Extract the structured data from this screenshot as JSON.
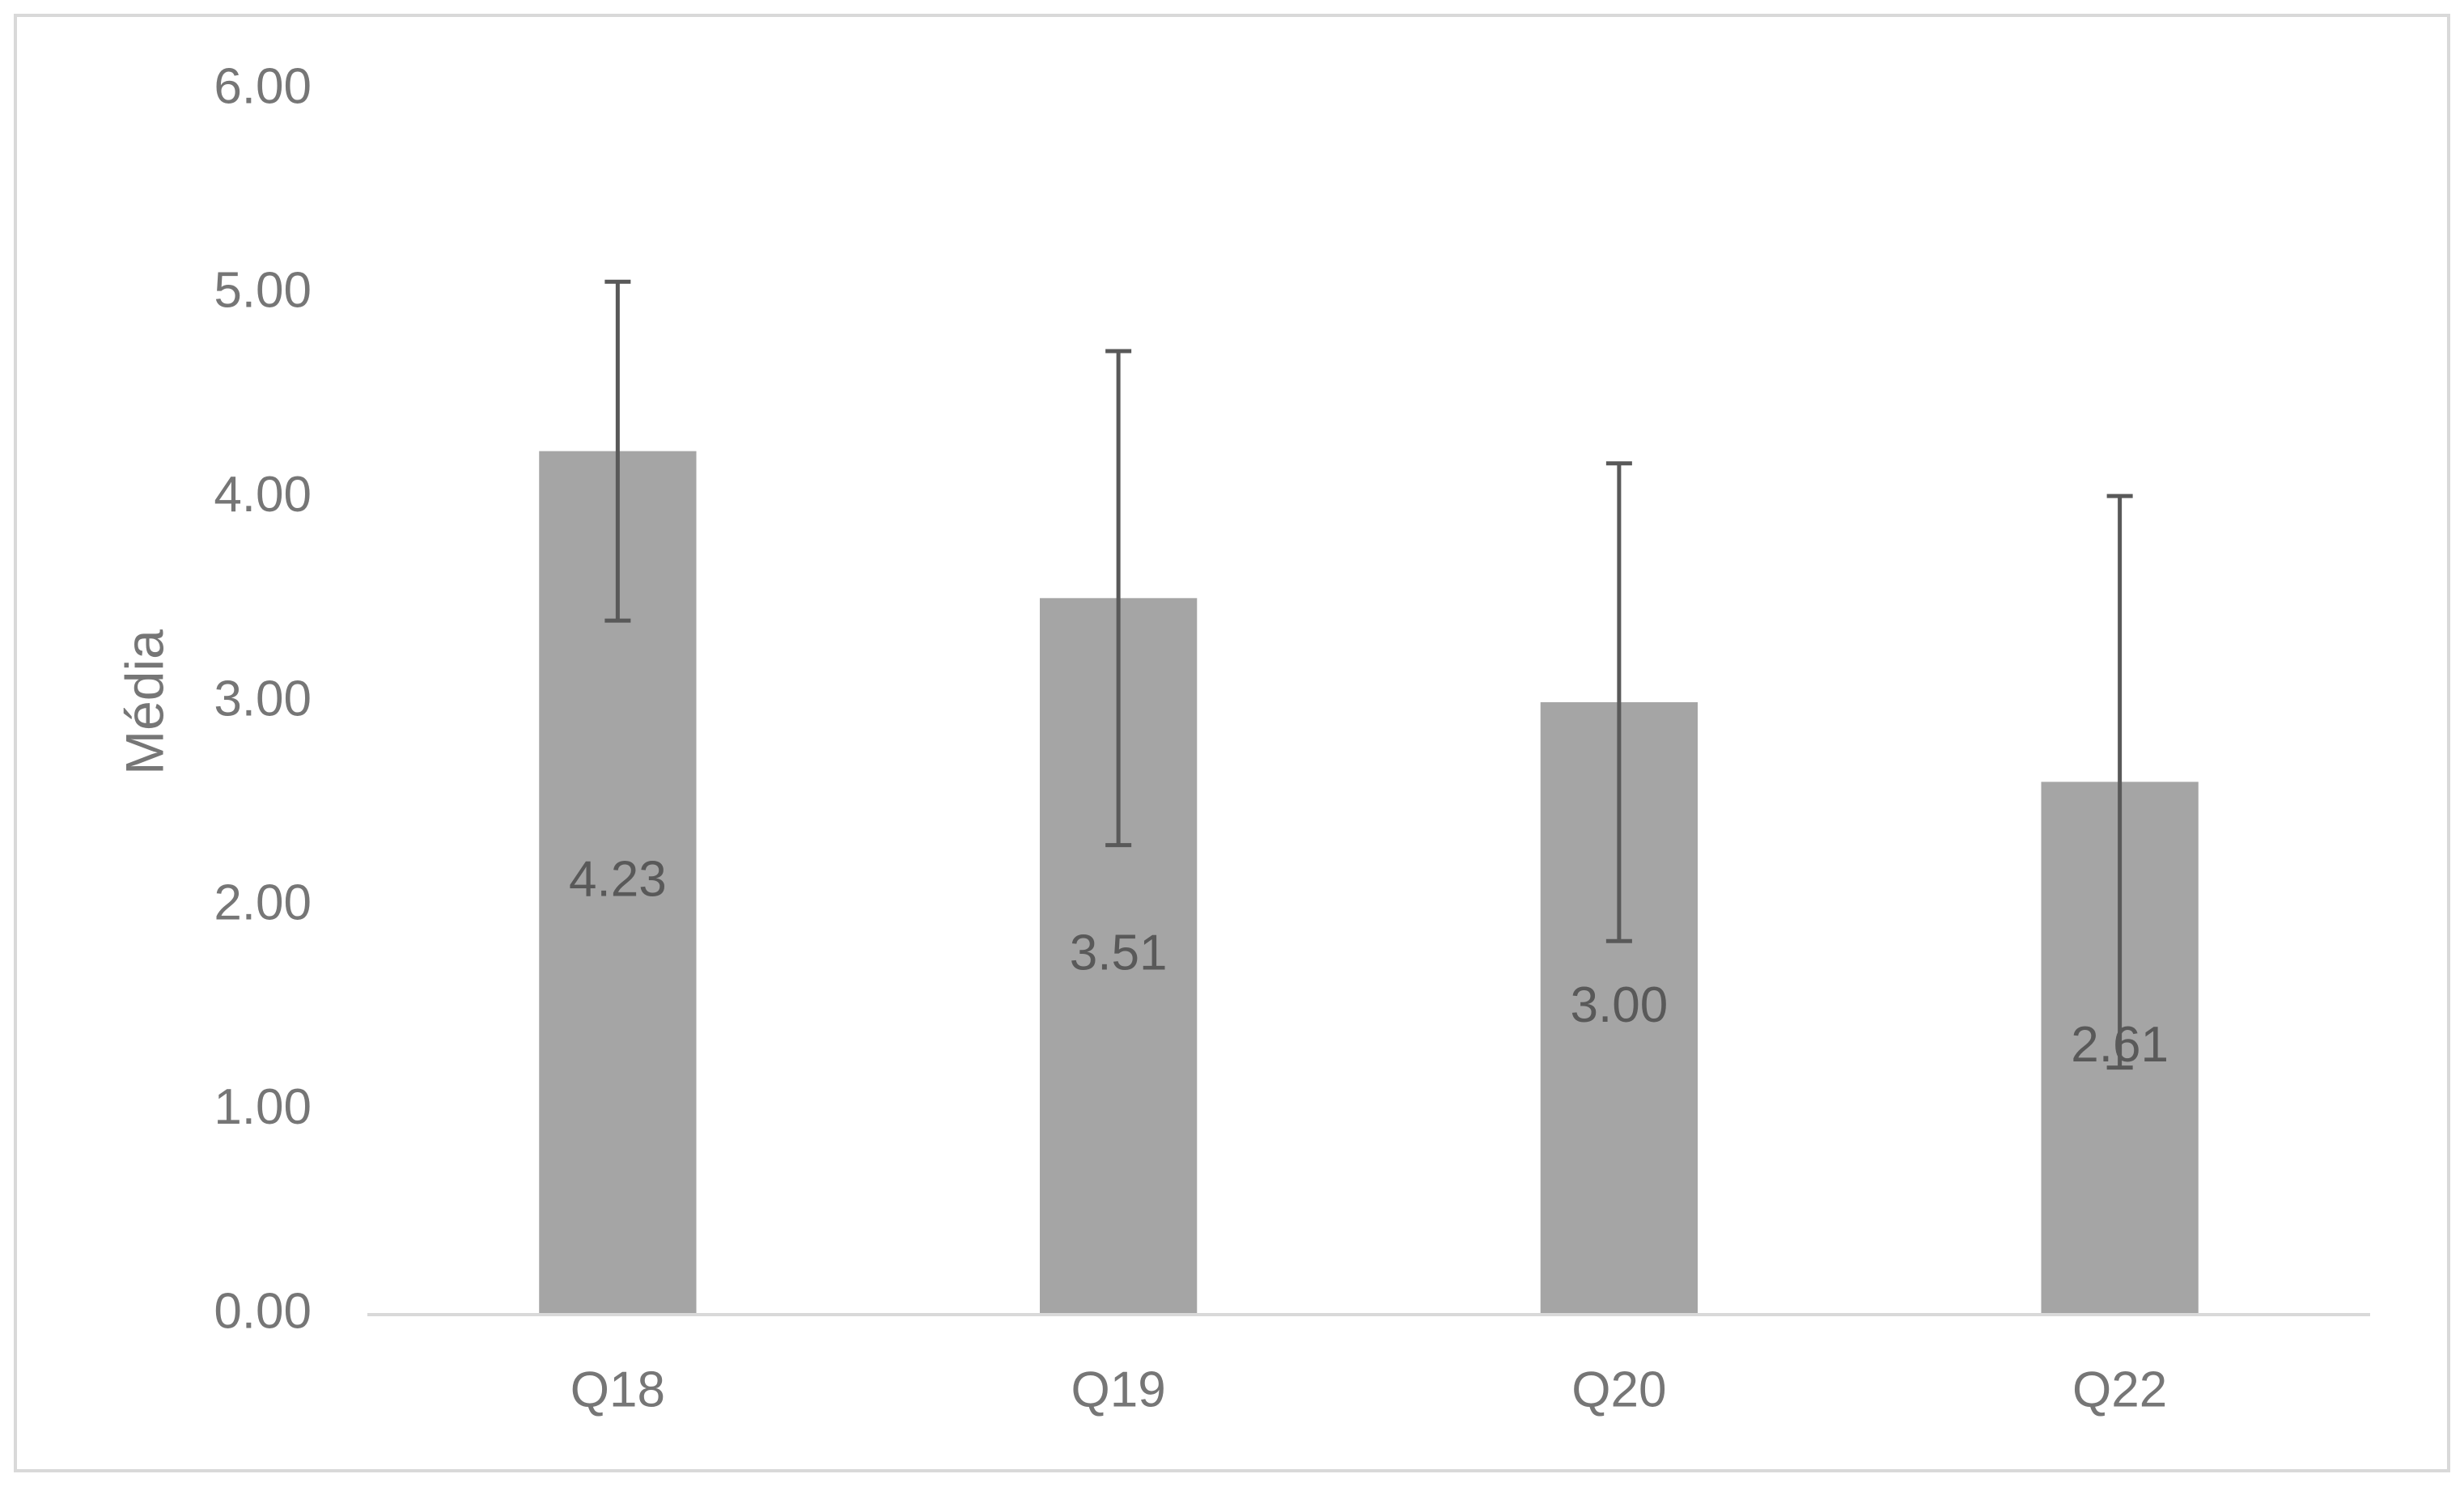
{
  "chart_data": {
    "type": "bar",
    "y_label": "Média",
    "categories": [
      "Q18",
      "Q19",
      "Q20",
      "Q22"
    ],
    "values": [
      4.23,
      3.51,
      3.0,
      2.61
    ],
    "value_labels": [
      "4.23",
      "3.51",
      "3.00",
      "2.61"
    ],
    "errors": [
      0.83,
      1.21,
      1.17,
      1.4
    ],
    "color": "#a5a5a5",
    "error_color": "#595959",
    "ylim": [
      0,
      6
    ],
    "yticks": [
      {
        "value": 0,
        "label": "0.00"
      },
      {
        "value": 1,
        "label": "1.00"
      },
      {
        "value": 2,
        "label": "2.00"
      },
      {
        "value": 3,
        "label": "3.00"
      },
      {
        "value": 4,
        "label": "4.00"
      },
      {
        "value": 5,
        "label": "5.00"
      },
      {
        "value": 6,
        "label": "6.00"
      }
    ],
    "grid": false
  }
}
